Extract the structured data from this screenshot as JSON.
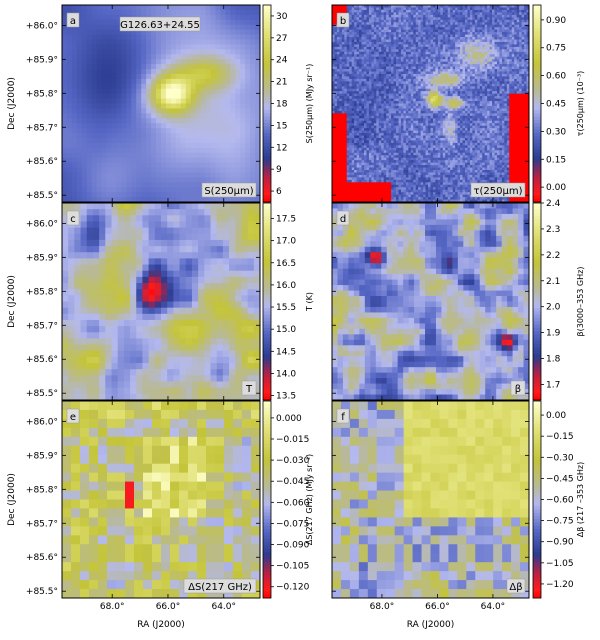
{
  "figure": {
    "ra_axis_label": "RA (J2000)",
    "dec_axis_label": "Dec (J2000)",
    "ra_ticks": [
      "68.0°",
      "66.0°",
      "64.0°"
    ],
    "ra_tick_values": [
      68.0,
      66.0,
      64.0
    ],
    "dec_ticks": [
      "+86.0°",
      "+85.9°",
      "+85.8°",
      "+85.7°",
      "+85.6°",
      "+85.5°"
    ],
    "dec_tick_values": [
      86.0,
      85.9,
      85.8,
      85.7,
      85.6,
      85.5
    ],
    "colors": {
      "cmap_low": "#ff1a1a",
      "cmap_mid_low": "#2b3b8f",
      "cmap_mid": "#b4b9ee",
      "cmap_mid_high": "#c4c43a",
      "cmap_high": "#ffffcc",
      "label_box": "#dcdcdc"
    }
  },
  "chart_data": [
    {
      "type": "heatmap",
      "panel": "a",
      "inset_title": "G126.63+24.55",
      "map_label": "S(250μm)",
      "colorbar_label": "S(250μm) (MJy sr⁻¹)",
      "colorbar_ticks": [
        6,
        9,
        12,
        15,
        18,
        21,
        24,
        27,
        30
      ],
      "colorbar_tick_labels": [
        "6",
        "9",
        "12",
        "15",
        "18",
        "21",
        "24",
        "27",
        "30"
      ],
      "vrange": [
        4.5,
        31.5
      ]
    },
    {
      "type": "heatmap",
      "panel": "b",
      "map_label": "τ(250μm)",
      "colorbar_label": "τ(250μm) (10⁻³)",
      "colorbar_ticks": [
        0.0,
        0.15,
        0.3,
        0.45,
        0.6,
        0.75,
        0.9
      ],
      "colorbar_tick_labels": [
        "0.00",
        "0.15",
        "0.30",
        "0.45",
        "0.60",
        "0.75",
        "0.90"
      ],
      "vrange": [
        -0.08,
        0.98
      ]
    },
    {
      "type": "heatmap",
      "panel": "c",
      "map_label": "T",
      "colorbar_label": "T (K)",
      "colorbar_ticks": [
        13.5,
        14.0,
        14.5,
        15.0,
        15.5,
        16.0,
        16.5,
        17.0,
        17.5
      ],
      "colorbar_tick_labels": [
        "13.5",
        "14.0",
        "14.5",
        "15.0",
        "15.5",
        "16.0",
        "16.5",
        "17.0",
        "17.5"
      ],
      "vrange": [
        13.4,
        17.85
      ]
    },
    {
      "type": "heatmap",
      "panel": "d",
      "map_label": "β",
      "colorbar_label": "β(3000–353 GHz)",
      "colorbar_ticks": [
        1.7,
        1.8,
        1.9,
        2.0,
        2.1,
        2.2,
        2.3,
        2.4
      ],
      "colorbar_tick_labels": [
        "1.7",
        "1.8",
        "1.9",
        "2.0",
        "2.1",
        "2.2",
        "2.3",
        "2.4"
      ],
      "vrange": [
        1.64,
        2.4
      ]
    },
    {
      "type": "heatmap",
      "panel": "e",
      "map_label": "ΔS(217 GHz)",
      "colorbar_label": "ΔS(217 GHz) (MJy sr⁻¹)",
      "colorbar_ticks": [
        0.0,
        -0.015,
        -0.03,
        -0.045,
        -0.06,
        -0.075,
        -0.09,
        -0.105,
        -0.12
      ],
      "colorbar_tick_labels": [
        "0.000",
        "−0.015",
        "−0.030",
        "−0.045",
        "−0.060",
        "−0.075",
        "−0.090",
        "−0.105",
        "−0.120"
      ],
      "vrange": [
        -0.128,
        0.012
      ]
    },
    {
      "type": "heatmap",
      "panel": "f",
      "map_label": "Δβ",
      "colorbar_label": "Δβ (217 –353 GHz)",
      "colorbar_ticks": [
        0.0,
        -0.15,
        -0.3,
        -0.45,
        -0.6,
        -0.75,
        -0.9,
        -1.05,
        -1.2
      ],
      "colorbar_tick_labels": [
        "0.00",
        "−0.15",
        "−0.30",
        "−0.45",
        "−0.60",
        "−0.75",
        "−0.90",
        "−1.05",
        "−1.20"
      ],
      "vrange": [
        -1.3,
        0.1
      ]
    }
  ]
}
